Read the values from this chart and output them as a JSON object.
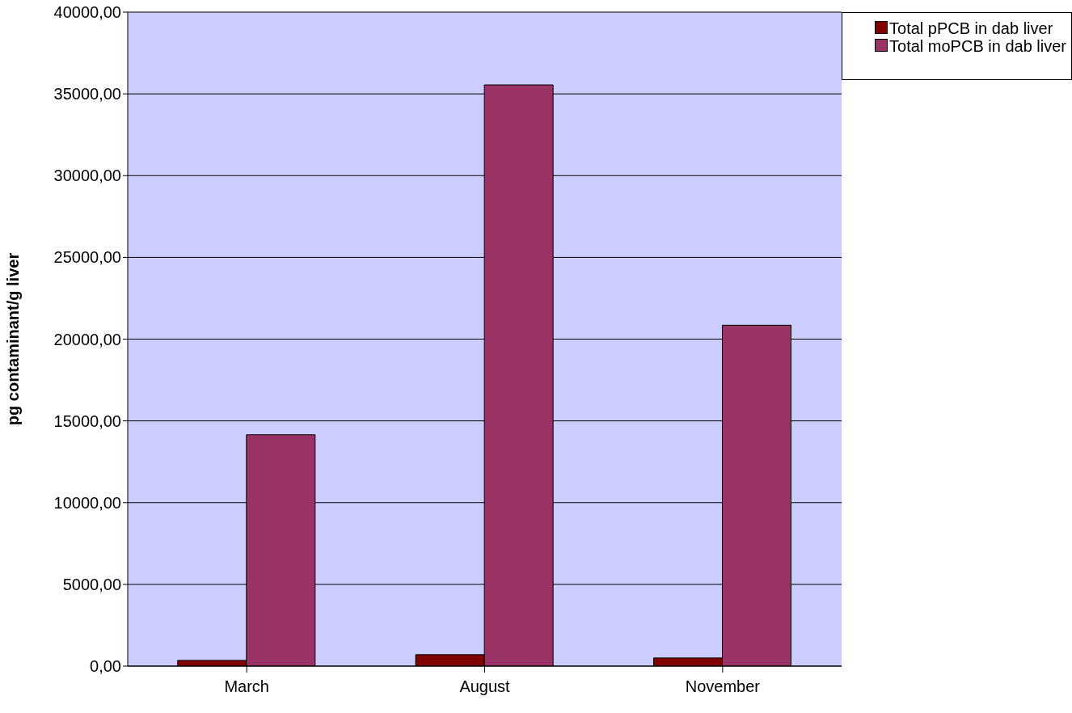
{
  "chart_data": {
    "type": "bar",
    "ylabel": "pg contaminant/g liver",
    "categories": [
      "March",
      "August",
      "November"
    ],
    "series": [
      {
        "name": "Total pPCB in dab liver",
        "color": "#800000",
        "values": [
          350,
          700,
          500
        ]
      },
      {
        "name": "Total moPCB in dab liver",
        "color": "#993366",
        "values": [
          14150,
          35550,
          20850
        ]
      }
    ],
    "ylim": [
      0,
      40000
    ],
    "yticks": [
      {
        "value": 0,
        "label": "0,00"
      },
      {
        "value": 5000,
        "label": "5000,00"
      },
      {
        "value": 10000,
        "label": "10000,00"
      },
      {
        "value": 15000,
        "label": "15000,00"
      },
      {
        "value": 20000,
        "label": "20000,00"
      },
      {
        "value": 25000,
        "label": "25000,00"
      },
      {
        "value": 30000,
        "label": "30000,00"
      },
      {
        "value": 35000,
        "label": "35000,00"
      },
      {
        "value": 40000,
        "label": "40000,00"
      }
    ],
    "grid": "y",
    "legend": "top right"
  }
}
